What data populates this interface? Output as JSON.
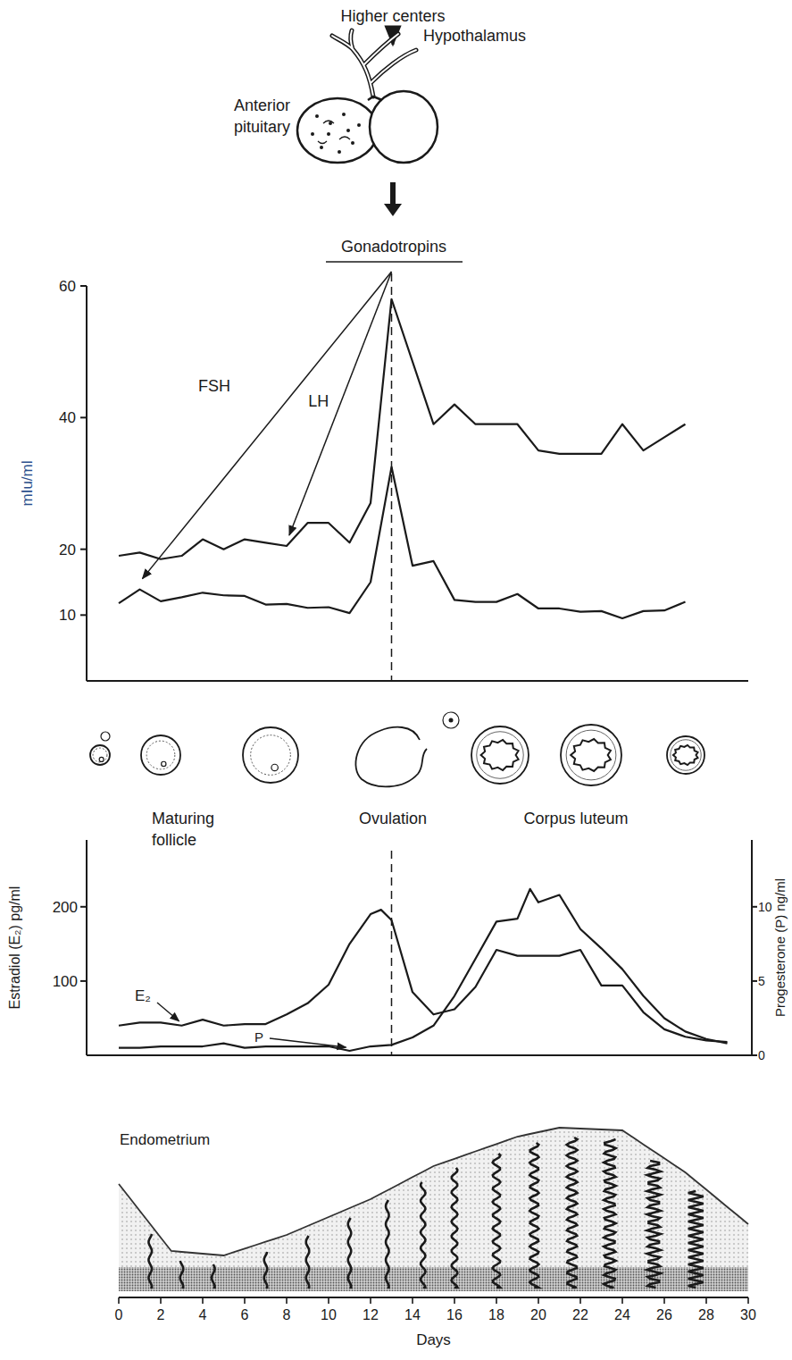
{
  "diagram": {
    "higher_centers": "Higher centers",
    "hypothalamus": "Hypothalamus",
    "anterior_pituitary": "Anterior pituitary",
    "follicle_stages": [
      "Maturing follicle",
      "Ovulation",
      "Corpus luteum"
    ],
    "endometrium": "Endometrium"
  },
  "chart_data": [
    {
      "type": "line",
      "title": "Gonadotropins",
      "y_label": "mIu/ml",
      "xlim": [
        0,
        30
      ],
      "ylim": [
        0,
        60
      ],
      "yticks": [
        10,
        20,
        40,
        60
      ],
      "tick_labels": "y",
      "vline": 13,
      "series": [
        {
          "name": "FSH",
          "color": "#1a1a1a",
          "x": [
            0,
            1,
            2,
            3,
            4,
            5,
            6,
            7,
            8,
            9,
            10,
            11,
            12,
            13,
            14,
            15,
            16,
            17,
            18,
            19,
            20,
            21,
            22,
            23,
            24,
            25,
            26,
            27
          ],
          "values": [
            11.8,
            13.9,
            12.1,
            12.7,
            13.4,
            13,
            12.9,
            11.6,
            11.7,
            11.1,
            11.2,
            10.3,
            15,
            32.5,
            17.5,
            18.2,
            12.3,
            12,
            12,
            13.2,
            11,
            11,
            10.5,
            10.6,
            9.5,
            10.6,
            10.7,
            12
          ]
        },
        {
          "name": "LH",
          "color": "#1a1a1a",
          "x": [
            0,
            1,
            2,
            3,
            4,
            5,
            6,
            7,
            8,
            9,
            10,
            11,
            12,
            13,
            15,
            16,
            17,
            18,
            19,
            20,
            21,
            22,
            23,
            24,
            25,
            26,
            27
          ],
          "values": [
            19,
            19.5,
            18.5,
            19,
            21.5,
            20,
            21.5,
            21,
            20.5,
            24,
            24,
            21,
            27,
            58,
            39,
            42,
            39,
            39,
            39,
            35,
            34.5,
            34.5,
            34.5,
            39,
            35,
            37,
            39
          ]
        }
      ]
    },
    {
      "type": "line",
      "x_label": "Days",
      "xlim": [
        0,
        30
      ],
      "xticks": [
        0,
        2,
        4,
        6,
        8,
        10,
        12,
        14,
        16,
        18,
        20,
        22,
        24,
        26,
        28,
        30
      ],
      "ylim": [
        0,
        290
      ],
      "yticks": [
        100,
        200
      ],
      "y_label": "Estradiol (E₂) pg/ml",
      "y2lim": [
        0,
        14.5
      ],
      "y2ticks": [
        0,
        5,
        10
      ],
      "y2_label": "Progesterone (P) ng/ml",
      "vline": 13,
      "series": [
        {
          "name": "E₂",
          "color": "#1a1a1a",
          "x": [
            0,
            1,
            2,
            3,
            4,
            5,
            6,
            7,
            8,
            9,
            10,
            11,
            12,
            12.5,
            13,
            14,
            15,
            16,
            17,
            18,
            19,
            20,
            21,
            22,
            23,
            24,
            25,
            26,
            27,
            28,
            29
          ],
          "values": [
            40,
            44,
            44,
            40,
            48,
            40,
            42,
            42,
            55,
            70,
            95,
            150,
            190,
            196,
            182,
            85,
            55,
            62,
            92,
            142,
            134,
            134,
            134,
            142,
            94,
            94,
            58,
            35,
            25,
            20,
            18
          ]
        },
        {
          "name": "P",
          "color": "#1a1a1a",
          "axis": "y2",
          "x": [
            0,
            1,
            2,
            3,
            4,
            5,
            6,
            7,
            8,
            9,
            10,
            11,
            12,
            13,
            14,
            15,
            16,
            17,
            18,
            19,
            19.6,
            20,
            21,
            22,
            23,
            24,
            25,
            26,
            27,
            28,
            29
          ],
          "values": [
            0.5,
            0.5,
            0.6,
            0.6,
            0.6,
            0.8,
            0.5,
            0.6,
            0.6,
            0.6,
            0.6,
            0.3,
            0.6,
            0.7,
            1.2,
            2,
            4,
            6.5,
            9,
            9.2,
            11.2,
            10.3,
            10.8,
            8.5,
            7.2,
            5.8,
            4,
            2.5,
            1.6,
            1.1,
            0.8
          ]
        }
      ]
    }
  ]
}
